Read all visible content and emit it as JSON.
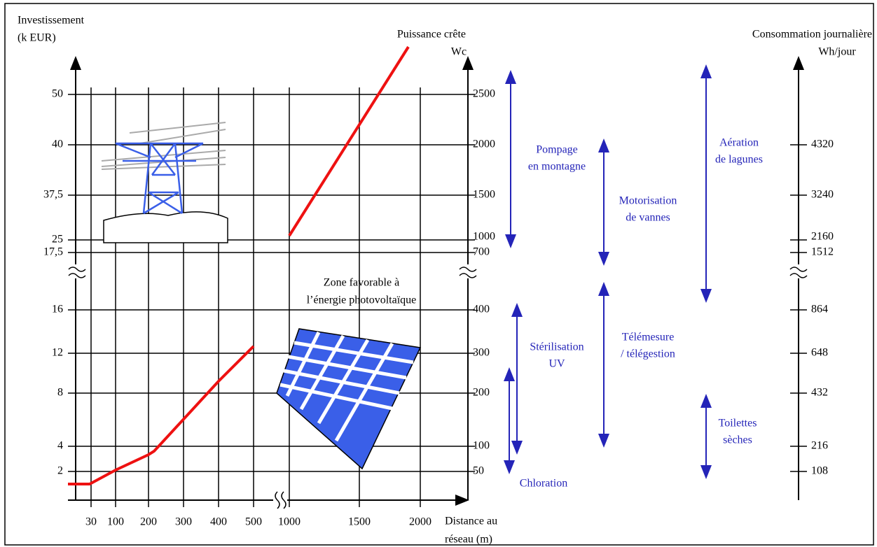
{
  "left_axis": {
    "title": [
      "Investissement",
      "(k EUR)"
    ],
    "labels": [
      "50",
      "40",
      "37,5",
      "25",
      "17,5",
      "16",
      "12",
      "8",
      "4",
      "2"
    ]
  },
  "power_axis": {
    "title": [
      "Puissance crête",
      "Wc"
    ],
    "labels": [
      "2500",
      "2000",
      "1500",
      "1000",
      "700",
      "400",
      "300",
      "200",
      "100",
      "50"
    ]
  },
  "consumption_axis": {
    "title": [
      "Consommation journalière",
      "Wh/jour"
    ],
    "labels": [
      "4320",
      "3240",
      "2160",
      "1512",
      "864",
      "648",
      "432",
      "216",
      "108"
    ]
  },
  "distance_axis": {
    "title": [
      "Distance au",
      "réseau (m)"
    ],
    "labels": [
      "30",
      "100",
      "200",
      "300",
      "400",
      "500",
      "1000",
      "1500",
      "2000"
    ]
  },
  "zone_label": [
    "Zone favorable à",
    "l’énergie photovoltaïque"
  ],
  "applications": [
    {
      "label": [
        "Pompage",
        "en montagne"
      ]
    },
    {
      "label": [
        "Motorisation",
        "de vannes"
      ]
    },
    {
      "label": [
        "Aération",
        "de lagunes"
      ]
    },
    {
      "label": [
        "Stérilisation",
        "UV"
      ]
    },
    {
      "label": [
        "Chloration"
      ]
    },
    {
      "label": [
        "Télémesure",
        "/ télégestion"
      ]
    },
    {
      "label": [
        "Toilettes",
        "sèches"
      ]
    }
  ]
}
